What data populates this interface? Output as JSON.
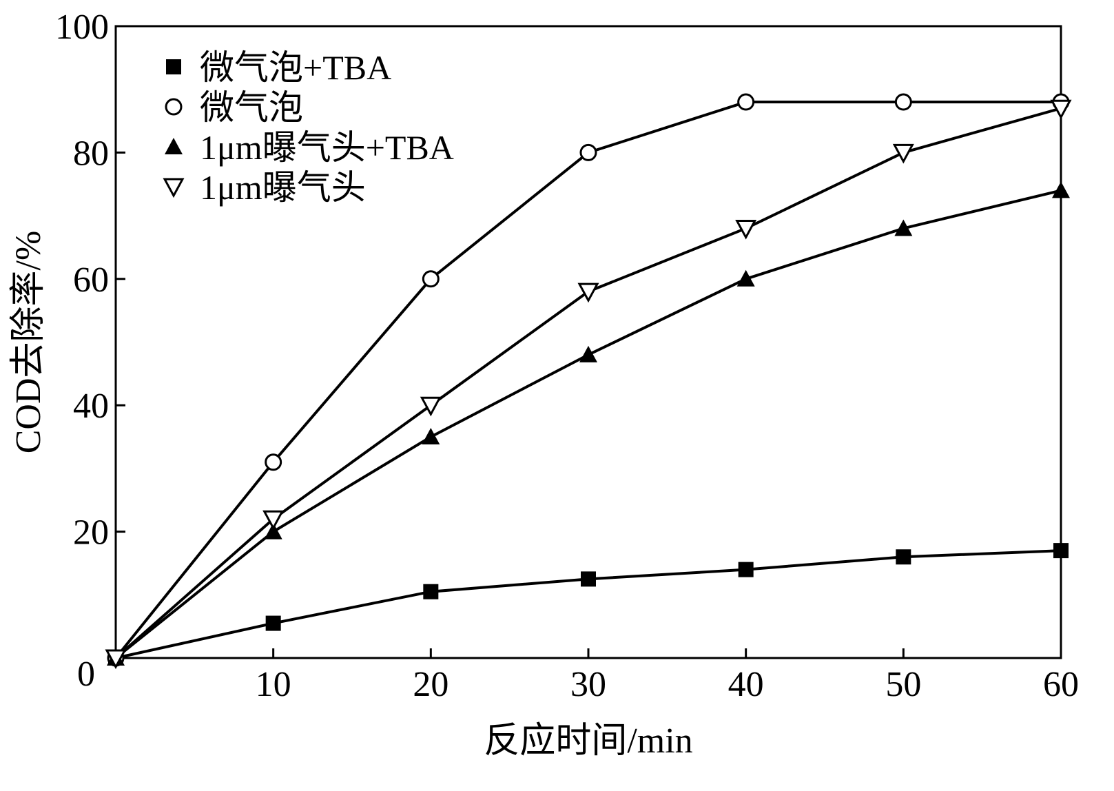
{
  "chart_data": {
    "type": "line",
    "title": "",
    "xlabel": "反应时间/min",
    "ylabel": "COD去除率/%",
    "x": [
      0,
      10,
      20,
      30,
      40,
      50,
      60
    ],
    "xlim": [
      0,
      60
    ],
    "ylim": [
      0,
      100
    ],
    "x_ticks": [
      10,
      20,
      30,
      40,
      50,
      60
    ],
    "y_ticks": [
      20,
      40,
      60,
      80,
      100
    ],
    "origin_label": "0",
    "grid": false,
    "legend_position": "top-left",
    "series": [
      {
        "name": "微气泡+TBA",
        "marker": "square-filled",
        "color": "#000000",
        "values": [
          0,
          5.5,
          10.5,
          12.5,
          14,
          16,
          17
        ]
      },
      {
        "name": "微气泡",
        "marker": "circle-open",
        "color": "#000000",
        "values": [
          0,
          31,
          60,
          80,
          88,
          88,
          88
        ]
      },
      {
        "name": "1μm曝气头+TBA",
        "marker": "triangle-up-filled",
        "color": "#000000",
        "values": [
          0,
          20,
          35,
          48,
          60,
          68,
          74
        ]
      },
      {
        "name": "1μm曝气头",
        "marker": "triangle-down-open",
        "color": "#000000",
        "values": [
          0,
          22,
          40,
          58,
          68,
          80,
          87
        ]
      }
    ]
  }
}
